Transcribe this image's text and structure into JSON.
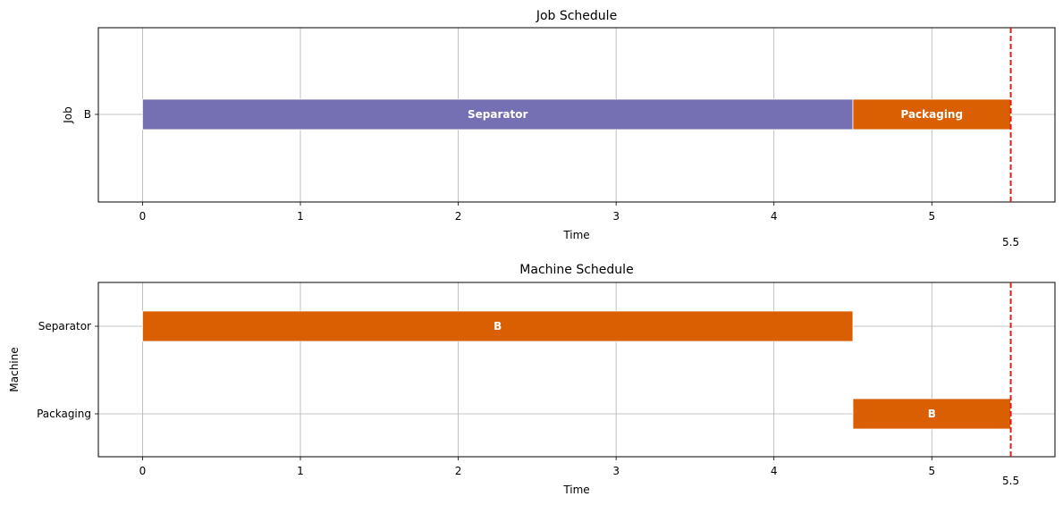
{
  "chart_data": [
    {
      "type": "gantt",
      "title": "Job Schedule",
      "xlabel": "Time",
      "ylabel": "Job",
      "xlim": [
        -0.28,
        5.78
      ],
      "xticks": [
        "0",
        "1",
        "2",
        "3",
        "4",
        "5"
      ],
      "rows": [
        "B"
      ],
      "grid": true,
      "bars": [
        {
          "row": "B",
          "start": 0,
          "end": 4.5,
          "label": "Separator",
          "color": "#7570b3"
        },
        {
          "row": "B",
          "start": 4.5,
          "end": 5.5,
          "label": "Packaging",
          "color": "#d95f02"
        }
      ],
      "makespan": {
        "value": 5.5,
        "label": "5.5",
        "color": "#e41a1c"
      }
    },
    {
      "type": "gantt",
      "title": "Machine Schedule",
      "xlabel": "Time",
      "ylabel": "Machine",
      "xlim": [
        -0.28,
        5.78
      ],
      "xticks": [
        "0",
        "1",
        "2",
        "3",
        "4",
        "5"
      ],
      "rows": [
        "Separator",
        "Packaging"
      ],
      "grid": true,
      "bars": [
        {
          "row": "Separator",
          "start": 0,
          "end": 4.5,
          "label": "B",
          "color": "#d95f02"
        },
        {
          "row": "Packaging",
          "start": 4.5,
          "end": 5.5,
          "label": "B",
          "color": "#d95f02"
        }
      ],
      "makespan": {
        "value": 5.5,
        "label": "5.5",
        "color": "#e41a1c"
      }
    }
  ]
}
